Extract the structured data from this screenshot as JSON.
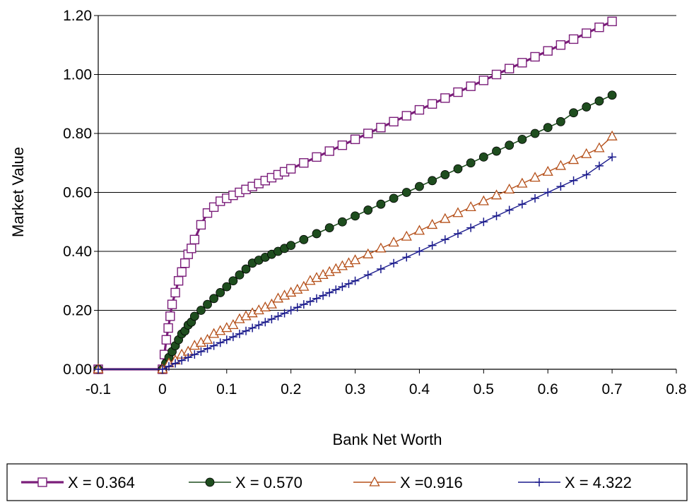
{
  "chart_data": {
    "type": "line",
    "title": "",
    "xlabel": "Bank Net Worth",
    "ylabel": "Market Value",
    "xlim": [
      -0.1,
      0.8
    ],
    "ylim": [
      0,
      1.2
    ],
    "x_ticks": [
      "-0.1",
      "0",
      "0.1",
      "0.2",
      "0.3",
      "0.4",
      "0.5",
      "0.6",
      "0.7",
      "0.8"
    ],
    "y_ticks": [
      "0.00",
      "0.20",
      "0.40",
      "0.60",
      "0.80",
      "1.00",
      "1.20"
    ],
    "grid": "horizontal",
    "legend_position": "bottom",
    "series": [
      {
        "name": "X = 0.364",
        "color": "#7B1E7A",
        "marker": "square-open",
        "x": [
          -0.1,
          0,
          0.003,
          0.006,
          0.009,
          0.012,
          0.015,
          0.02,
          0.025,
          0.03,
          0.035,
          0.04,
          0.045,
          0.05,
          0.06,
          0.07,
          0.08,
          0.09,
          0.1,
          0.11,
          0.12,
          0.13,
          0.14,
          0.15,
          0.16,
          0.17,
          0.18,
          0.19,
          0.2,
          0.22,
          0.24,
          0.26,
          0.28,
          0.3,
          0.32,
          0.34,
          0.36,
          0.38,
          0.4,
          0.42,
          0.44,
          0.46,
          0.48,
          0.5,
          0.52,
          0.54,
          0.56,
          0.58,
          0.6,
          0.62,
          0.64,
          0.66,
          0.68,
          0.7
        ],
        "y": [
          0,
          0,
          0.05,
          0.1,
          0.14,
          0.18,
          0.22,
          0.26,
          0.3,
          0.33,
          0.36,
          0.39,
          0.41,
          0.44,
          0.49,
          0.53,
          0.55,
          0.57,
          0.58,
          0.59,
          0.6,
          0.61,
          0.62,
          0.63,
          0.64,
          0.65,
          0.66,
          0.67,
          0.68,
          0.7,
          0.72,
          0.74,
          0.76,
          0.78,
          0.8,
          0.82,
          0.84,
          0.86,
          0.88,
          0.9,
          0.92,
          0.94,
          0.96,
          0.98,
          1.0,
          1.02,
          1.04,
          1.06,
          1.08,
          1.1,
          1.12,
          1.14,
          1.16,
          1.18
        ]
      },
      {
        "name": "X = 0.570",
        "color": "#1E4D1E",
        "marker": "circle-filled",
        "x": [
          -0.1,
          0,
          0.005,
          0.01,
          0.015,
          0.02,
          0.025,
          0.03,
          0.035,
          0.04,
          0.045,
          0.05,
          0.06,
          0.07,
          0.08,
          0.09,
          0.1,
          0.11,
          0.12,
          0.13,
          0.14,
          0.15,
          0.16,
          0.17,
          0.18,
          0.19,
          0.2,
          0.22,
          0.24,
          0.26,
          0.28,
          0.3,
          0.32,
          0.34,
          0.36,
          0.38,
          0.4,
          0.42,
          0.44,
          0.46,
          0.48,
          0.5,
          0.52,
          0.54,
          0.56,
          0.58,
          0.6,
          0.62,
          0.64,
          0.66,
          0.68,
          0.7
        ],
        "y": [
          0,
          0,
          0.02,
          0.04,
          0.06,
          0.08,
          0.1,
          0.12,
          0.13,
          0.15,
          0.16,
          0.18,
          0.2,
          0.22,
          0.24,
          0.26,
          0.28,
          0.3,
          0.32,
          0.34,
          0.36,
          0.37,
          0.38,
          0.39,
          0.4,
          0.41,
          0.42,
          0.44,
          0.46,
          0.48,
          0.5,
          0.52,
          0.54,
          0.56,
          0.58,
          0.6,
          0.62,
          0.64,
          0.66,
          0.68,
          0.7,
          0.72,
          0.74,
          0.76,
          0.78,
          0.8,
          0.82,
          0.84,
          0.87,
          0.89,
          0.91,
          0.93
        ]
      },
      {
        "name": "X =0.916",
        "color": "#B5501A",
        "marker": "triangle-open",
        "x": [
          -0.1,
          0,
          0.01,
          0.02,
          0.03,
          0.04,
          0.05,
          0.06,
          0.07,
          0.08,
          0.09,
          0.1,
          0.11,
          0.12,
          0.13,
          0.14,
          0.15,
          0.16,
          0.17,
          0.18,
          0.19,
          0.2,
          0.21,
          0.22,
          0.23,
          0.24,
          0.25,
          0.26,
          0.27,
          0.28,
          0.29,
          0.3,
          0.32,
          0.34,
          0.36,
          0.38,
          0.4,
          0.42,
          0.44,
          0.46,
          0.48,
          0.5,
          0.52,
          0.54,
          0.56,
          0.58,
          0.6,
          0.62,
          0.64,
          0.66,
          0.68,
          0.7
        ],
        "y": [
          0,
          0,
          0.02,
          0.03,
          0.05,
          0.06,
          0.08,
          0.09,
          0.1,
          0.12,
          0.13,
          0.14,
          0.15,
          0.17,
          0.18,
          0.19,
          0.2,
          0.21,
          0.22,
          0.24,
          0.25,
          0.26,
          0.27,
          0.28,
          0.3,
          0.31,
          0.32,
          0.33,
          0.34,
          0.35,
          0.36,
          0.37,
          0.39,
          0.41,
          0.43,
          0.45,
          0.47,
          0.49,
          0.51,
          0.53,
          0.55,
          0.57,
          0.59,
          0.61,
          0.63,
          0.65,
          0.67,
          0.69,
          0.71,
          0.73,
          0.75,
          0.79
        ]
      },
      {
        "name": "X = 4.322",
        "color": "#1A1A8C",
        "marker": "plus",
        "x": [
          -0.1,
          0,
          0.01,
          0.02,
          0.03,
          0.04,
          0.05,
          0.06,
          0.07,
          0.08,
          0.09,
          0.1,
          0.11,
          0.12,
          0.13,
          0.14,
          0.15,
          0.16,
          0.17,
          0.18,
          0.19,
          0.2,
          0.21,
          0.22,
          0.23,
          0.24,
          0.25,
          0.26,
          0.27,
          0.28,
          0.29,
          0.3,
          0.32,
          0.34,
          0.36,
          0.38,
          0.4,
          0.42,
          0.44,
          0.46,
          0.48,
          0.5,
          0.52,
          0.54,
          0.56,
          0.58,
          0.6,
          0.62,
          0.64,
          0.66,
          0.68,
          0.7
        ],
        "y": [
          0,
          0,
          0.01,
          0.02,
          0.03,
          0.04,
          0.05,
          0.06,
          0.07,
          0.08,
          0.09,
          0.1,
          0.11,
          0.12,
          0.13,
          0.14,
          0.15,
          0.16,
          0.17,
          0.18,
          0.19,
          0.2,
          0.21,
          0.22,
          0.23,
          0.24,
          0.25,
          0.26,
          0.27,
          0.28,
          0.29,
          0.3,
          0.32,
          0.34,
          0.36,
          0.38,
          0.4,
          0.42,
          0.44,
          0.46,
          0.48,
          0.5,
          0.52,
          0.54,
          0.56,
          0.58,
          0.6,
          0.62,
          0.64,
          0.66,
          0.69,
          0.72
        ]
      }
    ]
  }
}
